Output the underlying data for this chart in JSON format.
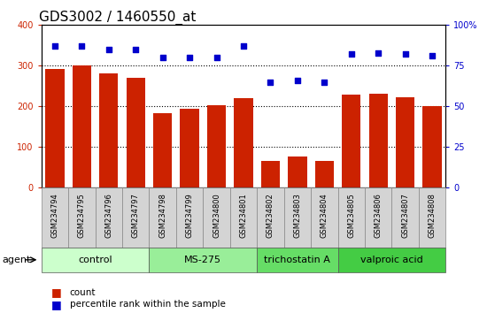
{
  "title": "GDS3002 / 1460550_at",
  "samples": [
    "GSM234794",
    "GSM234795",
    "GSM234796",
    "GSM234797",
    "GSM234798",
    "GSM234799",
    "GSM234800",
    "GSM234801",
    "GSM234802",
    "GSM234803",
    "GSM234804",
    "GSM234805",
    "GSM234806",
    "GSM234807",
    "GSM234808"
  ],
  "counts": [
    293,
    300,
    282,
    271,
    184,
    195,
    202,
    220,
    65,
    77,
    65,
    228,
    232,
    222,
    200
  ],
  "percentile": [
    87,
    87,
    85,
    85,
    80,
    80,
    80,
    87,
    65,
    66,
    65,
    82,
    83,
    82,
    81
  ],
  "groups": [
    {
      "label": "control",
      "start": 0,
      "end": 4,
      "color": "#ccffcc"
    },
    {
      "label": "MS-275",
      "start": 4,
      "end": 8,
      "color": "#99ee99"
    },
    {
      "label": "trichostatin A",
      "start": 8,
      "end": 11,
      "color": "#66dd66"
    },
    {
      "label": "valproic acid",
      "start": 11,
      "end": 15,
      "color": "#44cc44"
    }
  ],
  "bar_color": "#cc2200",
  "dot_color": "#0000cc",
  "left_ylim": [
    0,
    400
  ],
  "right_ylim": [
    0,
    100
  ],
  "left_yticks": [
    0,
    100,
    200,
    300,
    400
  ],
  "right_yticks": [
    0,
    25,
    50,
    75,
    100
  ],
  "right_yticklabels": [
    "0",
    "25",
    "50",
    "75",
    "100%"
  ],
  "title_fontsize": 11,
  "tick_fontsize": 7,
  "label_fontsize": 8,
  "sample_fontsize": 6
}
